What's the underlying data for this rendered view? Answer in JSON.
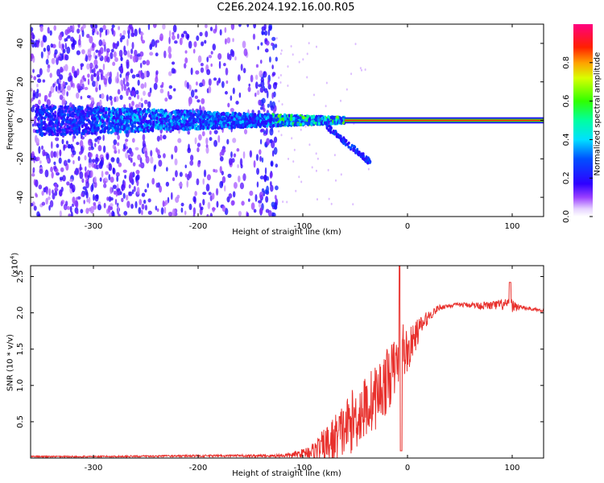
{
  "chart_data": [
    {
      "type": "heatmap",
      "title": "C2E6.2024.192.16.00.R05",
      "xlabel": "Height of straight line (km)",
      "ylabel": "Frequency (Hz)",
      "xlim": [
        -360,
        130
      ],
      "ylim": [
        -50,
        50
      ],
      "xticks": [
        -300,
        -200,
        -100,
        0,
        100
      ],
      "yticks": [
        -40,
        -20,
        0,
        20,
        40
      ],
      "colorbar": {
        "label": "Normalized spectral amplitude",
        "range": [
          0,
          1
        ],
        "ticks": [
          0.0,
          0.2,
          0.4,
          0.6,
          0.8
        ],
        "tick_labels": [
          "0.0",
          "0.2",
          "0.4",
          "0.6",
          "0.8"
        ]
      },
      "features": {
        "noise_region_x": [
          -360,
          -125
        ],
        "signal_band_center_hz": 0,
        "signal_band_halfwidth_hz": [
          8,
          1.5
        ],
        "tail_branch": {
          "x": [
            -80,
            -35
          ],
          "y": [
            -2,
            -22
          ]
        },
        "strong_line_x": [
          -60,
          130
        ],
        "strong_line_value": 0.9
      }
    },
    {
      "type": "line",
      "xlabel": "Height of straight line (km)",
      "ylabel": "SNR (10 * v/v)",
      "y_scale_label": "(x10",
      "y_scale_exponent": "4",
      "y_scale_close": ")",
      "xlim": [
        -360,
        130
      ],
      "ylim": [
        0,
        2.65
      ],
      "xticks": [
        -300,
        -200,
        -100,
        0,
        100
      ],
      "yticks": [
        0.5,
        1.0,
        1.5,
        2.0,
        2.5
      ],
      "series": [
        {
          "name": "SNR",
          "color": "#e8302c",
          "x": [
            -360,
            -300,
            -200,
            -130,
            -110,
            -100,
            -90,
            -80,
            -70,
            -60,
            -50,
            -40,
            -30,
            -20,
            -10,
            -5,
            0,
            10,
            20,
            30,
            40,
            50,
            60,
            70,
            80,
            90,
            100,
            110,
            120,
            130
          ],
          "y": [
            0.02,
            0.02,
            0.03,
            0.03,
            0.04,
            0.07,
            0.1,
            0.15,
            0.25,
            0.4,
            0.55,
            0.7,
            0.85,
            1.05,
            1.3,
            1.5,
            1.45,
            1.75,
            1.95,
            2.07,
            2.1,
            2.11,
            2.11,
            2.1,
            2.1,
            2.11,
            2.1,
            2.07,
            2.05,
            2.03
          ],
          "noise": [
            0.01,
            0.01,
            0.015,
            0.02,
            0.04,
            0.06,
            0.12,
            0.25,
            0.35,
            0.4,
            0.45,
            0.45,
            0.45,
            0.45,
            0.4,
            0.45,
            0.3,
            0.18,
            0.08,
            0.04,
            0.03,
            0.03,
            0.04,
            0.05,
            0.06,
            0.08,
            0.09,
            0.03,
            0.02,
            0.02
          ]
        }
      ]
    }
  ],
  "colors": {
    "line": "#e8302c",
    "axis": "#000000"
  }
}
